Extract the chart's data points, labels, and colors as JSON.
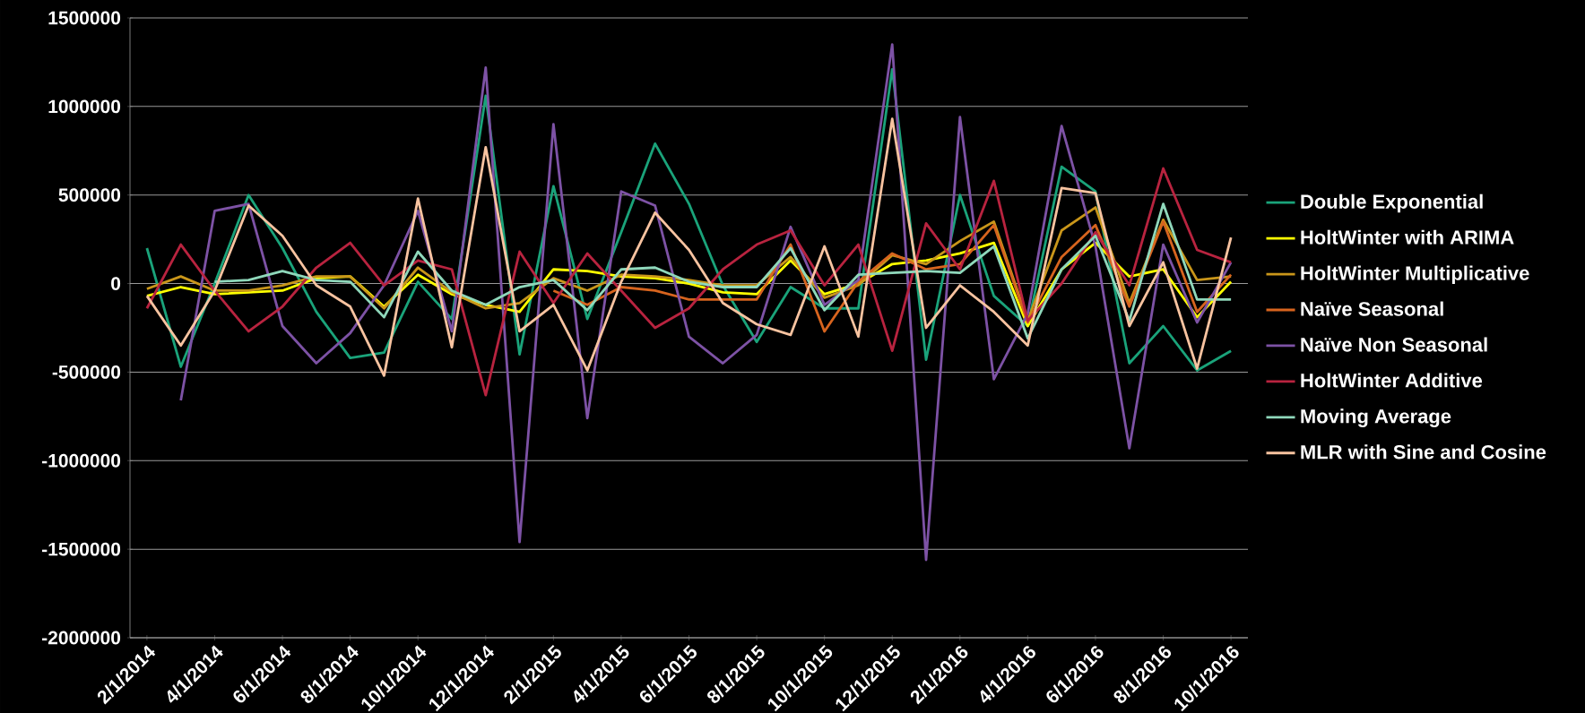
{
  "chart_data": {
    "type": "line",
    "categories": [
      "2/1/2014",
      null,
      "4/1/2014",
      null,
      "6/1/2014",
      null,
      "8/1/2014",
      null,
      "10/1/2014",
      null,
      "12/1/2014",
      null,
      "2/1/2015",
      null,
      "4/1/2015",
      null,
      "6/1/2015",
      null,
      "8/1/2015",
      null,
      "10/1/2015",
      null,
      "12/1/2015",
      null,
      "2/1/2016",
      null,
      "4/1/2016",
      null,
      "6/1/2016",
      null,
      "8/1/2016",
      null,
      "10/1/2016"
    ],
    "series": [
      {
        "name": "Double Exponential",
        "color": "#1aa37a",
        "values": [
          200000,
          -470000,
          0,
          500000,
          200000,
          -160000,
          -420000,
          -390000,
          10000,
          -200000,
          1060000,
          -400000,
          550000,
          -200000,
          290000,
          790000,
          450000,
          -10000,
          -330000,
          -20000,
          -140000,
          -140000,
          1210000,
          -430000,
          500000,
          -70000,
          -240000,
          660000,
          520000,
          -450000,
          -240000,
          -490000,
          -380000
        ]
      },
      {
        "name": "HoltWinter with ARIMA",
        "color": "#ffff00",
        "values": [
          -70000,
          -20000,
          -60000,
          -50000,
          -40000,
          30000,
          40000,
          -130000,
          50000,
          -60000,
          -120000,
          -160000,
          80000,
          70000,
          40000,
          30000,
          0,
          -50000,
          -60000,
          130000,
          -60000,
          0,
          110000,
          130000,
          170000,
          230000,
          -240000,
          80000,
          230000,
          40000,
          80000,
          -190000,
          10000
        ]
      },
      {
        "name": "HoltWinter Multiplicative",
        "color": "#c9961a",
        "values": [
          -30000,
          40000,
          -40000,
          -40000,
          -10000,
          40000,
          40000,
          -140000,
          90000,
          -50000,
          -140000,
          -110000,
          30000,
          -40000,
          50000,
          40000,
          20000,
          -10000,
          -10000,
          150000,
          -80000,
          -10000,
          160000,
          110000,
          240000,
          350000,
          -210000,
          300000,
          430000,
          -110000,
          360000,
          20000,
          40000
        ]
      },
      {
        "name": "Naïve Seasonal",
        "color": "#d7641e",
        "values": [
          null,
          null,
          null,
          null,
          null,
          null,
          null,
          null,
          null,
          null,
          null,
          null,
          -40000,
          -120000,
          -20000,
          -40000,
          -90000,
          -90000,
          -90000,
          220000,
          -270000,
          10000,
          170000,
          80000,
          110000,
          330000,
          -220000,
          150000,
          330000,
          -130000,
          350000,
          -160000,
          50000
        ]
      },
      {
        "name": "Naïve Non  Seasonal",
        "color": "#7d52a5",
        "values": [
          null,
          -660000,
          410000,
          450000,
          -240000,
          -450000,
          -280000,
          -10000,
          410000,
          -270000,
          1220000,
          -1460000,
          900000,
          -760000,
          520000,
          440000,
          -300000,
          -450000,
          -290000,
          320000,
          -120000,
          20000,
          1350000,
          -1560000,
          940000,
          -540000,
          -170000,
          890000,
          210000,
          -930000,
          220000,
          -220000,
          120000
        ]
      },
      {
        "name": "HoltWinter Additive",
        "color": "#b8233f",
        "values": [
          -140000,
          220000,
          -40000,
          -270000,
          -130000,
          90000,
          230000,
          -10000,
          130000,
          80000,
          -630000,
          180000,
          -110000,
          170000,
          -40000,
          -250000,
          -140000,
          80000,
          220000,
          300000,
          -10000,
          220000,
          -380000,
          340000,
          80000,
          580000,
          -210000,
          0,
          290000,
          -10000,
          650000,
          190000,
          120000
        ]
      },
      {
        "name": "Moving Average",
        "color": "#8fd8bb",
        "values": [
          null,
          null,
          10000,
          20000,
          70000,
          20000,
          10000,
          -190000,
          180000,
          -40000,
          -120000,
          -20000,
          20000,
          -150000,
          80000,
          90000,
          10000,
          -20000,
          -20000,
          200000,
          -150000,
          50000,
          60000,
          70000,
          60000,
          210000,
          -310000,
          80000,
          270000,
          -210000,
          450000,
          -90000,
          -90000
        ]
      },
      {
        "name": "MLR with Sine and Cosine",
        "color": "#f8c3a0",
        "values": [
          -70000,
          -350000,
          -40000,
          440000,
          270000,
          -10000,
          -130000,
          -520000,
          480000,
          -360000,
          770000,
          -270000,
          -120000,
          -490000,
          10000,
          400000,
          190000,
          -110000,
          -230000,
          -290000,
          210000,
          -300000,
          930000,
          -250000,
          -10000,
          -160000,
          -350000,
          540000,
          510000,
          -240000,
          120000,
          -480000,
          260000
        ]
      }
    ],
    "ylim": [
      -2000000,
      1500000
    ],
    "yticks": [
      -2000000,
      -1500000,
      -1000000,
      -500000,
      0,
      500000,
      1000000,
      1500000
    ],
    "grid": "y",
    "legend": "right",
    "marker": "none",
    "line_style": "solid"
  }
}
